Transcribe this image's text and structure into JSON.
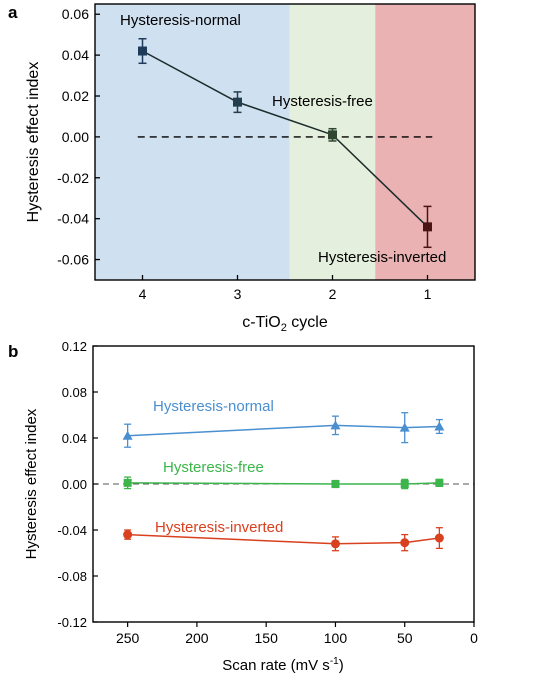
{
  "chart_data": [
    {
      "panel_label": "a",
      "type": "line",
      "xlabel": "c-TiO",
      "xlabel_sub": "2",
      "xlabel_suffix": " cycle",
      "ylabel": "Hysteresis effect index",
      "xlim": [
        4.5,
        0.5
      ],
      "ylim": [
        -0.07,
        0.065
      ],
      "x_ticks": [
        4,
        3,
        2,
        1
      ],
      "x_tick_labels": [
        "4",
        "3",
        "2",
        "1"
      ],
      "y_ticks": [
        -0.06,
        -0.04,
        -0.02,
        0.0,
        0.02,
        0.04,
        0.06
      ],
      "y_tick_labels": [
        "-0.06",
        "-0.04",
        "-0.02",
        "0.00",
        "0.02",
        "0.04",
        "0.06"
      ],
      "regions": [
        {
          "label": "Hysteresis-normal",
          "from": 4.5,
          "to": 2.45,
          "color": "#cfe0f1"
        },
        {
          "label": "Hysteresis-free",
          "from": 2.45,
          "to": 1.55,
          "color": "#e4efdd"
        },
        {
          "label": "Hysteresis-inverted",
          "from": 1.55,
          "to": 0.5,
          "color": "#eab2b2"
        }
      ],
      "reference_line": {
        "y": 0.0,
        "from": 4.05,
        "to": 0.95,
        "style": "dashed"
      },
      "series": [
        {
          "x": [
            4,
            3,
            2,
            1
          ],
          "y": [
            0.042,
            0.017,
            0.001,
            -0.044
          ],
          "err": [
            0.006,
            0.005,
            0.003,
            0.01
          ],
          "colors": [
            "#1f3b5a",
            "#233f4c",
            "#2f4631",
            "#4b1414"
          ]
        }
      ]
    },
    {
      "panel_label": "b",
      "type": "line",
      "xlabel": "Scan rate (mV s",
      "xlabel_sup": "-1",
      "xlabel_suffix": ")",
      "ylabel": "Hysteresis effect index",
      "xlim": [
        275,
        0
      ],
      "ylim": [
        -0.12,
        0.12
      ],
      "x_ticks": [
        250,
        200,
        150,
        100,
        50,
        0
      ],
      "x_tick_labels": [
        "250",
        "200",
        "150",
        "100",
        "50",
        "0"
      ],
      "y_ticks": [
        -0.12,
        -0.08,
        -0.04,
        0.0,
        0.04,
        0.08,
        0.12
      ],
      "y_tick_labels": [
        "-0.12",
        "-0.08",
        "-0.04",
        "0.00",
        "0.04",
        "0.08",
        "0.12"
      ],
      "reference_line": {
        "y": 0.0,
        "style": "dashed"
      },
      "x": [
        250,
        100,
        50,
        25
      ],
      "series": [
        {
          "name": "Hysteresis-normal",
          "marker": "triangle",
          "color": "#4a8fd0",
          "values": [
            0.042,
            0.051,
            0.049,
            0.05
          ],
          "err": [
            0.01,
            0.008,
            0.013,
            0.006
          ]
        },
        {
          "name": "Hysteresis-free",
          "marker": "square",
          "color": "#3cb54a",
          "values": [
            0.001,
            0.0,
            0.0,
            0.001
          ],
          "err": [
            0.005,
            0.003,
            0.004,
            0.003
          ]
        },
        {
          "name": "Hysteresis-inverted",
          "marker": "circle",
          "color": "#d9401d",
          "values": [
            -0.044,
            -0.052,
            -0.051,
            -0.047
          ],
          "err": [
            0.004,
            0.006,
            0.007,
            0.009
          ]
        }
      ]
    }
  ]
}
